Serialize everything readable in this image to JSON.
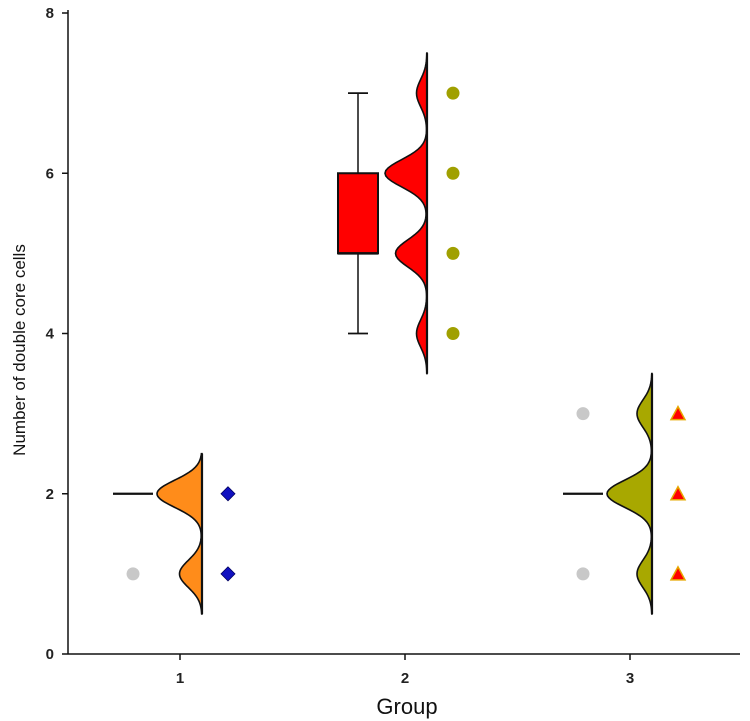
{
  "chart_data": {
    "type": "raincloud",
    "xlabel": "Group",
    "ylabel": "Number of double core cells",
    "ylim": [
      0,
      8
    ],
    "y_ticks": [
      "0",
      "2",
      "4",
      "6",
      "8"
    ],
    "categories": [
      "1",
      "2",
      "3"
    ],
    "groups": [
      {
        "name": "1",
        "box": {
          "whisker_low": 2,
          "q1": 2,
          "median": 2,
          "q3": 2,
          "whisker_high": 2
        },
        "outliers": [
          1
        ],
        "points": [
          1,
          2
        ],
        "density": {
          "values": [
            1,
            2
          ],
          "weights": [
            1,
            2
          ],
          "range": [
            0.5,
            2.5
          ]
        },
        "color": "#ff8c1a",
        "point_color": "#1010c0",
        "point_shape": "diamond"
      },
      {
        "name": "2",
        "box": {
          "whisker_low": 4,
          "q1": 5,
          "median": 5,
          "q3": 6,
          "whisker_high": 7
        },
        "outliers": [],
        "points": [
          4,
          5,
          6,
          7
        ],
        "density": {
          "values": [
            4,
            5,
            6,
            7
          ],
          "weights": [
            1,
            3,
            4,
            1
          ],
          "range": [
            3.5,
            7.5
          ]
        },
        "color": "#ff0000",
        "point_color": "#a0a000",
        "point_shape": "circle"
      },
      {
        "name": "3",
        "box": {
          "whisker_low": 2,
          "q1": 2,
          "median": 2,
          "q3": 2,
          "whisker_high": 2
        },
        "outliers": [
          1,
          3
        ],
        "points": [
          1,
          2,
          3
        ],
        "density": {
          "values": [
            1,
            2,
            3
          ],
          "weights": [
            1,
            3,
            1
          ],
          "range": [
            0.5,
            3.5
          ]
        },
        "color": "#a8a800",
        "point_color": "#ff0000",
        "point_edge": "#e6a800",
        "point_shape": "triangle"
      }
    ],
    "outlier_color": "#c8c8c8"
  }
}
